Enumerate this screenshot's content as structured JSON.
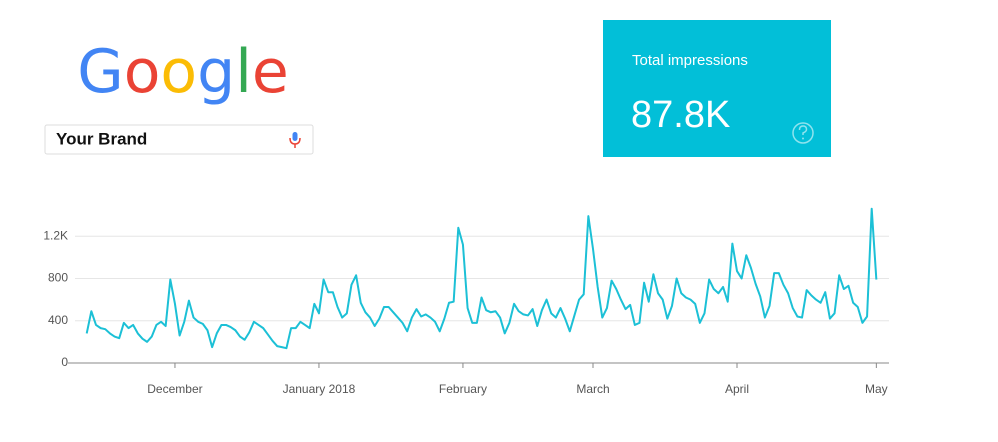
{
  "header": {
    "logo": "Google",
    "search_query": "Your Brand"
  },
  "metric": {
    "label": "Total impressions",
    "value_text": "87.8K"
  },
  "chart_data": {
    "type": "line",
    "color": "#1cc0d6",
    "grid": true,
    "categories": [
      null,
      null,
      null,
      null,
      null,
      null,
      null,
      null,
      null,
      null,
      null,
      null,
      null,
      null,
      null,
      null,
      null,
      null,
      null,
      "December",
      null,
      null,
      null,
      null,
      null,
      null,
      null,
      null,
      null,
      null,
      null,
      null,
      null,
      null,
      null,
      null,
      null,
      null,
      null,
      null,
      null,
      null,
      null,
      null,
      null,
      null,
      null,
      null,
      null,
      null,
      "January 2018",
      null,
      null,
      null,
      null,
      null,
      null,
      null,
      null,
      null,
      null,
      null,
      null,
      null,
      null,
      null,
      null,
      null,
      null,
      null,
      null,
      null,
      null,
      null,
      null,
      null,
      null,
      null,
      null,
      null,
      null,
      "February",
      null,
      null,
      null,
      null,
      null,
      null,
      null,
      null,
      null,
      null,
      null,
      null,
      null,
      null,
      null,
      null,
      null,
      null,
      null,
      null,
      null,
      null,
      null,
      null,
      null,
      null,
      null,
      "March",
      null,
      null,
      null,
      null,
      null,
      null,
      null,
      null,
      null,
      null,
      null,
      null,
      null,
      null,
      null,
      null,
      null,
      null,
      null,
      null,
      null,
      null,
      null,
      null,
      null,
      null,
      null,
      null,
      null,
      null,
      "April",
      null,
      null,
      null,
      null,
      null,
      null,
      null,
      null,
      null,
      null,
      null,
      null,
      null,
      null,
      null,
      null,
      null,
      null,
      null,
      null,
      null,
      null,
      null,
      null,
      null,
      null,
      null,
      null,
      null,
      "May"
    ],
    "values": [
      280,
      490,
      360,
      330,
      320,
      280,
      250,
      235,
      380,
      330,
      360,
      280,
      230,
      200,
      250,
      360,
      390,
      350,
      790,
      560,
      260,
      390,
      590,
      430,
      390,
      370,
      310,
      150,
      280,
      360,
      360,
      340,
      310,
      250,
      220,
      290,
      390,
      360,
      330,
      270,
      210,
      160,
      150,
      140,
      330,
      330,
      390,
      360,
      330,
      560,
      470,
      790,
      670,
      670,
      530,
      430,
      470,
      740,
      830,
      570,
      480,
      430,
      350,
      420,
      530,
      530,
      480,
      430,
      380,
      300,
      430,
      510,
      440,
      460,
      430,
      390,
      300,
      420,
      570,
      580,
      1280,
      1120,
      520,
      380,
      380,
      620,
      500,
      480,
      490,
      430,
      280,
      380,
      560,
      490,
      460,
      450,
      510,
      350,
      500,
      600,
      470,
      430,
      520,
      420,
      300,
      450,
      600,
      650,
      1390,
      1080,
      720,
      430,
      520,
      780,
      700,
      600,
      510,
      550,
      360,
      380,
      760,
      580,
      840,
      660,
      600,
      420,
      540,
      800,
      660,
      620,
      600,
      560,
      380,
      470,
      790,
      700,
      660,
      720,
      580,
      1130,
      870,
      800,
      1020,
      900,
      750,
      630,
      430,
      540,
      850,
      850,
      740,
      660,
      520,
      440,
      430,
      690,
      640,
      600,
      570,
      670,
      420,
      470,
      830,
      700,
      730,
      570,
      530,
      380,
      440,
      1460,
      790
    ],
    "ylim": [
      0,
      1500
    ],
    "yticks": [
      0,
      400,
      800,
      {
        "value": 1200,
        "label": "1.2K"
      }
    ]
  }
}
